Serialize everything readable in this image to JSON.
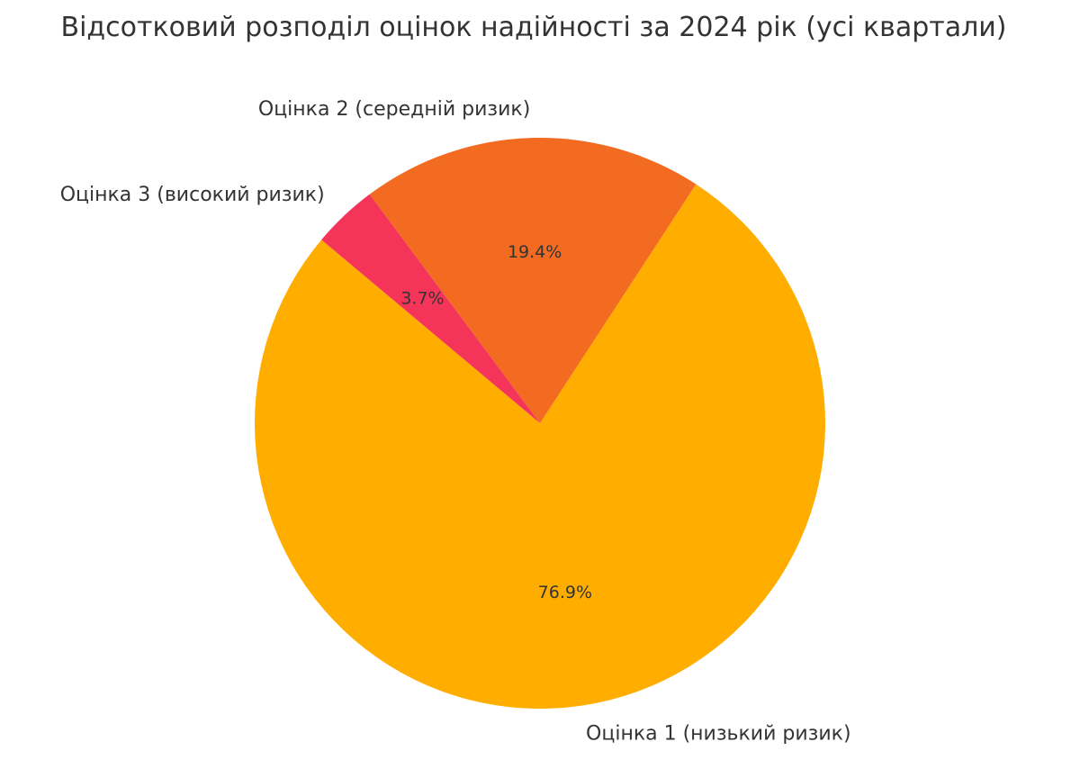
{
  "chart_data": {
    "type": "pie",
    "title": "Відсотковий розподіл оцінок надійності за 2024 рік (усі квартали)",
    "start_angle": 140,
    "counterclockwise": true,
    "slices": [
      {
        "label": "Оцінка 1 (низький ризик)",
        "value": 76.9,
        "pct_label": "76.9%",
        "color": "#FFAE00"
      },
      {
        "label": "Оцінка 2 (середній ризик)",
        "value": 19.4,
        "pct_label": "19.4%",
        "color": "#F26B21"
      },
      {
        "label": "Оцінка 3 (високий ризик)",
        "value": 3.7,
        "pct_label": "3.7%",
        "color": "#F5345A"
      }
    ]
  }
}
